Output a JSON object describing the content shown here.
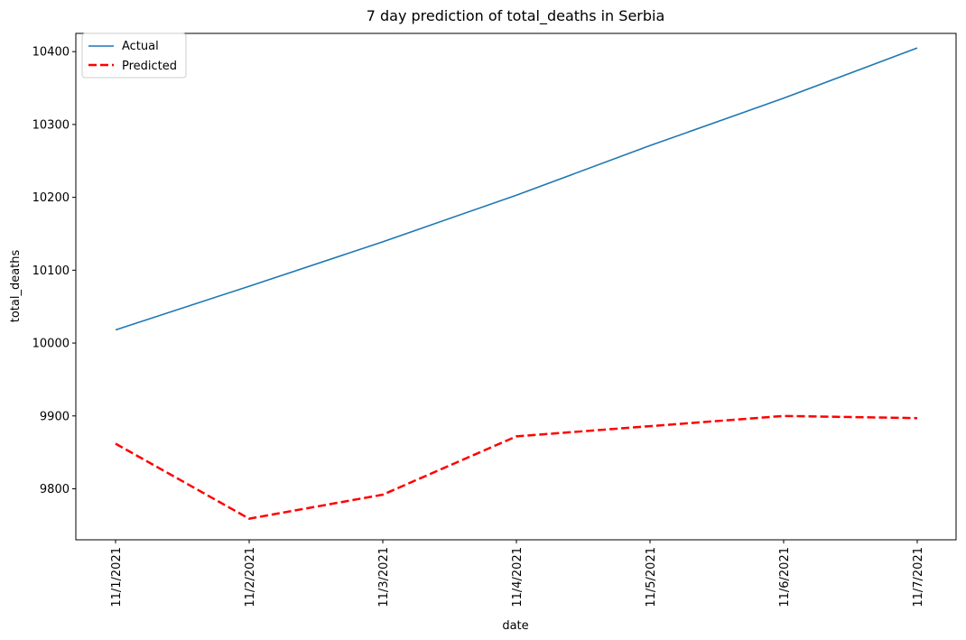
{
  "chart_data": {
    "type": "line",
    "title": "7 day prediction of total_deaths in Serbia",
    "xlabel": "date",
    "ylabel": "total_deaths",
    "categories": [
      "11/1/2021",
      "11/2/2021",
      "11/3/2021",
      "11/4/2021",
      "11/5/2021",
      "11/6/2021",
      "11/7/2021"
    ],
    "ylim": [
      9730,
      10425
    ],
    "yticks": [
      9800,
      9900,
      10000,
      10100,
      10200,
      10300,
      10400
    ],
    "grid": false,
    "legend_position": "top-left",
    "series": [
      {
        "name": "Actual",
        "values": [
          10018,
          10078,
          10139,
          10203,
          10271,
          10336,
          10405
        ],
        "color": "#1f77b4",
        "style": "solid"
      },
      {
        "name": "Predicted",
        "values": [
          9862,
          9759,
          9792,
          9872,
          9886,
          9900,
          9897
        ],
        "color": "#ff0000",
        "style": "dashed"
      }
    ]
  }
}
